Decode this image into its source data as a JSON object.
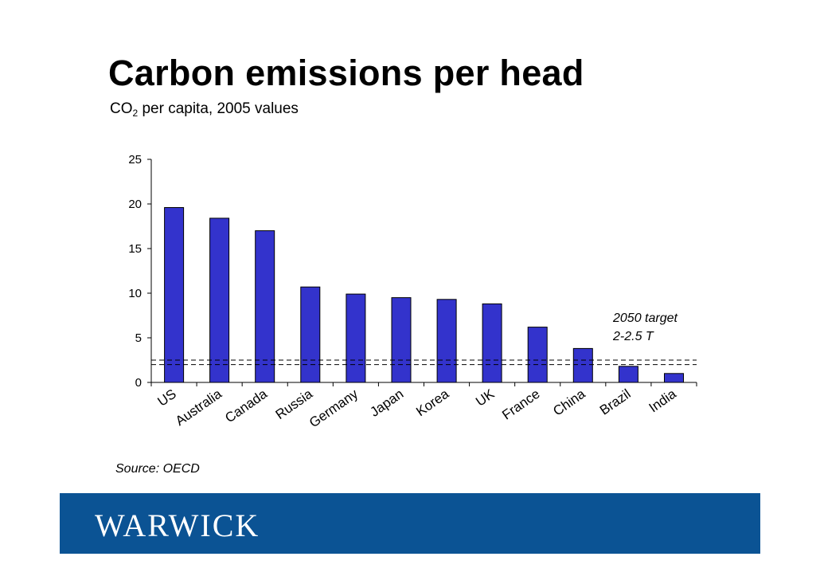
{
  "slide": {
    "title": "Carbon emissions per head",
    "subtitle_prefix": "CO",
    "subtitle_subscript": "2",
    "subtitle_suffix": " per capita, 2005 values",
    "source": "Source: OECD"
  },
  "footer": {
    "logo_text": "WARWICK",
    "band_color": "#0b5394"
  },
  "colors": {
    "bar": "#3333cc"
  },
  "chart_data": {
    "type": "bar",
    "title": "",
    "xlabel": "",
    "ylabel": "",
    "categories": [
      "US",
      "Australia",
      "Canada",
      "Russia",
      "Germany",
      "Japan",
      "Korea",
      "UK",
      "France",
      "China",
      "Brazil",
      "India"
    ],
    "values": [
      19.6,
      18.4,
      17.0,
      10.7,
      9.9,
      9.5,
      9.3,
      8.8,
      6.2,
      3.8,
      1.8,
      1.0
    ],
    "ylim": [
      0,
      25
    ],
    "yticks": [
      0,
      5,
      10,
      15,
      20,
      25
    ],
    "grid": false,
    "reference_lines": [
      2.0,
      2.5
    ],
    "annotation": {
      "line1": "2050 target",
      "line2": "2-2.5 T"
    }
  }
}
